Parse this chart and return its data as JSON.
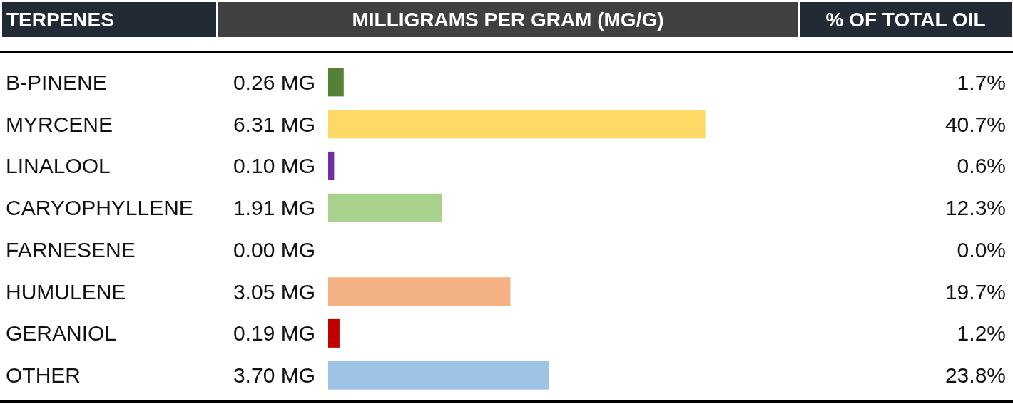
{
  "chart_data": {
    "type": "bar",
    "orientation": "horizontal",
    "ylabel": "TERPENES",
    "xlabel": "MILLIGRAMS PER GRAM (MG/G)",
    "categories": [
      "B-PINENE",
      "MYRCENE",
      "LINALOOL",
      "CARYOPHYLLENE",
      "FARNESENE",
      "HUMULENE",
      "GERANIOL",
      "OTHER"
    ],
    "values": [
      0.26,
      6.31,
      0.1,
      1.91,
      0.0,
      3.05,
      0.19,
      3.7
    ],
    "colors": [
      "#538135",
      "#ffd966",
      "#7030a0",
      "#a9d18e",
      "#ffc000",
      "#f4b183",
      "#c00000",
      "#9dc3e6"
    ],
    "value_labels": [
      "0.26 MG",
      "6.31 MG",
      "0.10 MG",
      "1.91 MG",
      "0.00 MG",
      "3.05 MG",
      "0.19 MG",
      "3.70 MG"
    ],
    "annotations": [
      "% OF TOTAL OIL",
      "1.7%",
      "40.7%",
      "0.6%",
      "12.3%",
      "0.0%",
      "19.7%",
      "1.2%",
      "23.8%"
    ],
    "tick_labels": "y"
  }
}
